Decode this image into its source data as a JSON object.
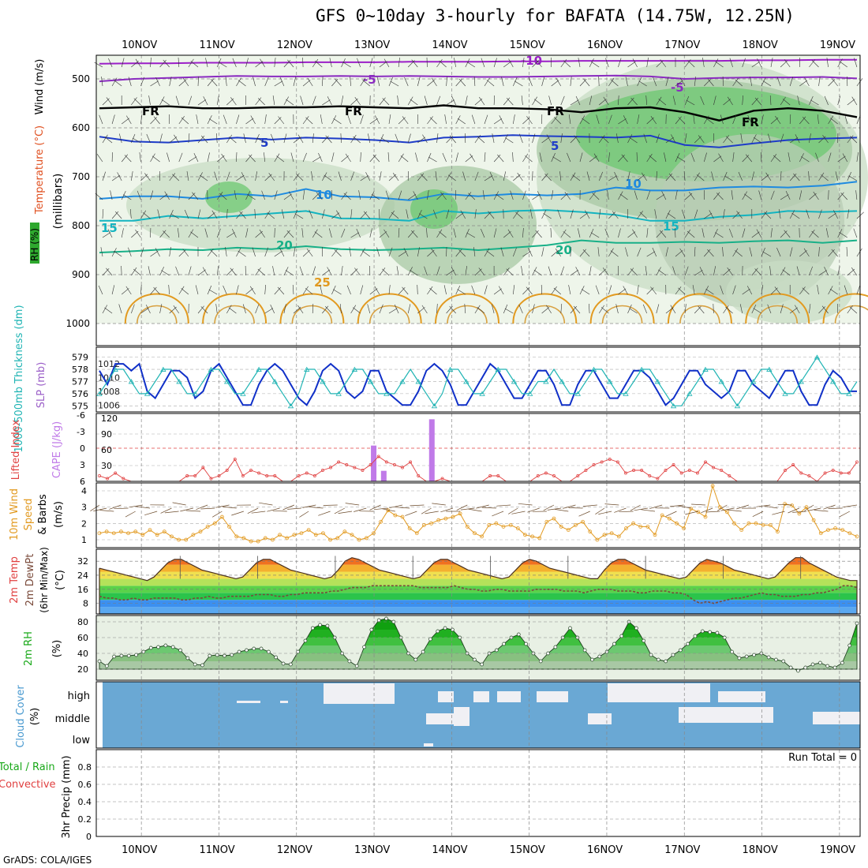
{
  "title": "GFS 0~10day 3-hourly for BAFATA (14.75W, 12.25N)",
  "credit": "GrADS: COLA/IGES",
  "chart_data": [
    {
      "type": "heatmap",
      "panel": "upper-air",
      "x_dates": [
        "10NOV",
        "11NOV",
        "12NOV",
        "13NOV",
        "14NOV",
        "15NOV",
        "16NOV",
        "17NOV",
        "18NOV",
        "19NOV"
      ],
      "ylabel": "(millibars)",
      "y_ticks": [
        500,
        600,
        700,
        800,
        900,
        1000
      ],
      "ylim": [
        1000,
        450
      ],
      "legend_labels": {
        "rh": "RH (%)",
        "temp": "Temperature (°C)",
        "wind": "Wind (m/s)"
      },
      "isotherm_labels": [
        "-10",
        "-5",
        "FR",
        "5",
        "10",
        "15",
        "20",
        "25"
      ],
      "isotherms": [
        {
          "label": "-10",
          "color": "#9b1fc8",
          "p": [
            469,
            468,
            468,
            467,
            467,
            467,
            466,
            466,
            466,
            465,
            465,
            465,
            464,
            464,
            463,
            463,
            463,
            463,
            463,
            462,
            462,
            461,
            461
          ]
        },
        {
          "label": "-5",
          "color": "#8a2bc0",
          "p": [
            505,
            500,
            498,
            496,
            494,
            495,
            495,
            494,
            495,
            494,
            495,
            496,
            496,
            495,
            494,
            493,
            495,
            500,
            498,
            497,
            497,
            496,
            499
          ]
        },
        {
          "label": "FR",
          "color": "#000000",
          "p": [
            560,
            558,
            556,
            560,
            560,
            558,
            558,
            556,
            558,
            560,
            554,
            560,
            560,
            562,
            568,
            560,
            558,
            568,
            585,
            565,
            560,
            565,
            578
          ]
        },
        {
          "label": "5",
          "color": "#1e3cc8",
          "p": [
            618,
            628,
            630,
            625,
            620,
            624,
            620,
            622,
            625,
            630,
            620,
            618,
            615,
            617,
            618,
            620,
            616,
            635,
            640,
            632,
            625,
            622,
            620
          ]
        },
        {
          "label": "10",
          "color": "#1e8ae0",
          "p": [
            745,
            740,
            740,
            745,
            735,
            740,
            725,
            740,
            742,
            748,
            735,
            740,
            735,
            738,
            735,
            722,
            728,
            728,
            722,
            720,
            722,
            718,
            710
          ]
        },
        {
          "label": "15",
          "color": "#14b4c0",
          "p": [
            790,
            790,
            780,
            785,
            780,
            775,
            770,
            785,
            786,
            790,
            770,
            775,
            770,
            768,
            772,
            778,
            790,
            790,
            782,
            778,
            770,
            772,
            770
          ]
        },
        {
          "label": "20",
          "color": "#18b088",
          "p": [
            855,
            852,
            848,
            850,
            845,
            848,
            842,
            848,
            850,
            848,
            845,
            850,
            845,
            840,
            830,
            835,
            835,
            833,
            835,
            832,
            830,
            835,
            830
          ]
        }
      ],
      "rh_band_note": "RH shading 30-90%"
    },
    {
      "type": "line",
      "panel": "thickness-slp",
      "ylabel_left": "1000-500mb Thickness (dm)",
      "ylabel_right": "SLP (mb)",
      "y_ticks_left": [
        575,
        576,
        577,
        578,
        579
      ],
      "y_ticks_right": [
        1006,
        1008,
        1010,
        1012
      ],
      "series": [
        {
          "name": "SLP",
          "color": "#1030c8",
          "values": [
            1011,
            1009,
            1012,
            1012,
            1011,
            1012,
            1008,
            1007,
            1009,
            1011,
            1011,
            1010,
            1007,
            1008,
            1011,
            1012,
            1010,
            1008,
            1006,
            1006,
            1009,
            1011,
            1012,
            1011,
            1009,
            1007,
            1006,
            1008,
            1011,
            1012,
            1011,
            1008,
            1007,
            1008,
            1011,
            1011,
            1008,
            1007,
            1006,
            1006,
            1008,
            1011,
            1012,
            1011,
            1009,
            1006,
            1006,
            1008,
            1010,
            1012,
            1011,
            1009,
            1007,
            1007,
            1009,
            1011,
            1011,
            1009,
            1006,
            1006,
            1009,
            1011,
            1011,
            1009,
            1007,
            1007,
            1009,
            1011,
            1011,
            1010,
            1008,
            1006,
            1007,
            1009,
            1011,
            1011,
            1009,
            1008,
            1007,
            1008,
            1011,
            1011,
            1009,
            1008,
            1007,
            1009,
            1011,
            1011,
            1008,
            1006,
            1006,
            1009,
            1011,
            1010,
            1008,
            1008
          ]
        },
        {
          "name": "Thickness",
          "color": "#20b4b4",
          "values": [
            576,
            577,
            578,
            578,
            577,
            576,
            576,
            577,
            578,
            578,
            577,
            576,
            576,
            577,
            578,
            578,
            577,
            576,
            576,
            577,
            578,
            578,
            577,
            576,
            575,
            576,
            578,
            578,
            577,
            576,
            576,
            577,
            578,
            578,
            577,
            576,
            576,
            576,
            577,
            578,
            577,
            576,
            575,
            576,
            578,
            578,
            577,
            576,
            576,
            577,
            578,
            578,
            577,
            576,
            576,
            577,
            577,
            578,
            577,
            576,
            576,
            577,
            578,
            578,
            577,
            576,
            576,
            577,
            578,
            578,
            577,
            576,
            575,
            575,
            576,
            577,
            578,
            578,
            577,
            576,
            575,
            576,
            577,
            578,
            578,
            577,
            576,
            576,
            577,
            578,
            579,
            578,
            577,
            576,
            576,
            577
          ]
        }
      ]
    },
    {
      "type": "bar",
      "panel": "cape-li",
      "ylabel_left": "Lifted Index",
      "ylabel_right": "CAPE (J/kg)",
      "y_ticks_left": [
        -6,
        -3,
        0,
        3,
        6
      ],
      "y_ticks_right": [
        30,
        60,
        90,
        120
      ],
      "cape_bars": [
        {
          "x": 13.0,
          "value": 68
        },
        {
          "x": 13.13,
          "value": 20
        },
        {
          "x": 13.75,
          "value": 118
        }
      ],
      "lifted_index": [
        5,
        5.5,
        4.5,
        5.5,
        6,
        6,
        6,
        6,
        6,
        6,
        6,
        5,
        5,
        3.5,
        5.5,
        5,
        4,
        2,
        5,
        4,
        4.5,
        5,
        5,
        6,
        6,
        5,
        4.5,
        5,
        4,
        3.5,
        2.5,
        3,
        3.5,
        4,
        3,
        1.5,
        2.5,
        3,
        3.5,
        2.5,
        5,
        6,
        6,
        5.5,
        6,
        6,
        6,
        6,
        6,
        5,
        5,
        6,
        6,
        6,
        6,
        5,
        4.5,
        5,
        6,
        6,
        5,
        4,
        3,
        2.5,
        2,
        2.5,
        4.5,
        4,
        4,
        5,
        5.5,
        4,
        3,
        4.5,
        4,
        4.5,
        2.5,
        3.5,
        4,
        5,
        6,
        6,
        6,
        6,
        6,
        6,
        4,
        3,
        4.5,
        5,
        6,
        4.5,
        4,
        4.5,
        4.5,
        2.5
      ]
    },
    {
      "type": "line",
      "panel": "10m-wind",
      "ylabel": "10m Wind Speed & Barbs (m/s)",
      "y_ticks": [
        1,
        2,
        3,
        4
      ],
      "series": [
        {
          "name": "10m Wind Speed",
          "color": "#e29a20",
          "values": [
            1.4,
            1.5,
            1.4,
            1.5,
            1.4,
            1.5,
            1.3,
            1.6,
            1.3,
            1.5,
            1.2,
            1.0,
            1.0,
            1.3,
            1.5,
            1.8,
            2.0,
            2.4,
            1.8,
            1.2,
            1.1,
            0.9,
            0.9,
            1.1,
            1.0,
            1.3,
            1.1,
            1.3,
            1.4,
            1.6,
            1.3,
            1.4,
            1.0,
            1.1,
            1.5,
            1.3,
            1.0,
            1.1,
            1.4,
            2.1,
            2.8,
            2.5,
            2.4,
            1.7,
            1.4,
            1.9,
            2.0,
            2.2,
            2.3,
            2.4,
            2.6,
            1.8,
            1.4,
            1.2,
            1.9,
            2.0,
            1.8,
            1.9,
            1.7,
            1.3,
            1.2,
            1.1,
            2.1,
            2.3,
            1.8,
            1.6,
            1.9,
            2.1,
            1.5,
            1.0,
            1.3,
            1.4,
            1.2,
            1.7,
            2.0,
            1.8,
            1.8,
            1.3,
            2.5,
            2.3,
            2.0,
            1.7,
            2.9,
            2.7,
            2.4,
            4.3,
            3.0,
            2.7,
            2.0,
            1.6,
            2.0,
            2.0,
            1.9,
            1.9,
            1.5,
            3.2,
            3.1,
            2.6,
            3.0,
            2.2,
            1.4,
            1.6,
            1.7,
            1.6,
            1.4,
            1.2
          ]
        }
      ]
    },
    {
      "type": "area",
      "panel": "2m-temp",
      "ylabel": "2m Temp / 2m DewPt (6hr Min/Max) (°C)",
      "y_ticks": [
        8,
        16,
        24,
        32
      ],
      "series": [
        {
          "name": "2m Temp",
          "values": [
            28,
            27,
            26,
            25,
            24,
            23,
            22,
            21,
            23,
            27,
            31,
            33,
            33,
            31,
            29,
            27,
            26,
            25,
            24,
            23,
            22,
            23,
            27,
            31,
            33,
            33,
            31,
            29,
            27,
            26,
            25,
            24,
            23,
            22,
            23,
            27,
            32,
            34,
            33,
            31,
            29,
            27,
            26,
            25,
            24,
            23,
            22,
            23,
            27,
            31,
            33,
            33,
            31,
            29,
            27,
            26,
            25,
            24,
            23,
            22,
            23,
            27,
            31,
            33,
            32,
            30,
            28,
            27,
            26,
            25,
            24,
            23,
            22,
            22,
            27,
            31,
            33,
            33,
            31,
            29,
            27,
            26,
            25,
            24,
            23,
            22,
            23,
            27,
            31,
            33,
            32,
            31,
            29,
            27,
            26,
            25,
            24,
            23,
            22,
            23,
            27,
            31,
            34,
            34,
            31,
            29,
            27,
            25,
            23,
            22,
            21,
            21
          ]
        },
        {
          "name": "2m DewPt",
          "values": [
            12,
            11,
            11,
            10,
            10,
            11,
            10,
            10,
            11,
            11,
            11,
            11,
            10,
            10,
            11,
            11,
            12,
            11,
            11,
            12,
            12,
            12,
            12,
            13,
            13,
            13,
            12,
            12,
            13,
            13,
            14,
            14,
            14,
            14,
            15,
            15,
            16,
            17,
            17,
            17,
            18,
            18,
            18,
            18,
            18,
            18,
            18,
            17,
            17,
            17,
            17,
            17,
            18,
            17,
            16,
            16,
            15,
            15,
            16,
            16,
            15,
            15,
            15,
            15,
            16,
            16,
            16,
            16,
            15,
            15,
            15,
            14,
            15,
            16,
            16,
            16,
            15,
            15,
            15,
            14,
            14,
            15,
            15,
            15,
            14,
            14,
            13,
            10,
            8,
            9,
            8,
            9,
            10,
            11,
            11,
            12,
            13,
            14,
            13,
            13,
            12,
            12,
            12,
            13,
            13,
            14,
            14,
            15,
            16,
            18,
            18,
            17
          ]
        }
      ]
    },
    {
      "type": "area",
      "panel": "2m-rh",
      "ylabel": "2m RH (%)",
      "y_ticks": [
        20,
        40,
        60,
        80
      ],
      "series": [
        {
          "name": "2m RH",
          "values": [
            30,
            24,
            36,
            37,
            37,
            38,
            42,
            47,
            48,
            50,
            48,
            44,
            34,
            26,
            25,
            37,
            38,
            37,
            38,
            42,
            44,
            46,
            46,
            42,
            35,
            27,
            26,
            42,
            56,
            72,
            76,
            75,
            60,
            40,
            30,
            24,
            48,
            70,
            82,
            84,
            80,
            60,
            40,
            32,
            42,
            58,
            68,
            72,
            70,
            60,
            40,
            32,
            26,
            40,
            44,
            52,
            60,
            64,
            52,
            40,
            30,
            40,
            48,
            60,
            72,
            60,
            44,
            32,
            36,
            42,
            52,
            62,
            80,
            72,
            56,
            38,
            32,
            30,
            38,
            44,
            52,
            62,
            68,
            67,
            66,
            60,
            42,
            34,
            36,
            38,
            40,
            35,
            32,
            30,
            22,
            18,
            22,
            26,
            28,
            24,
            22,
            28,
            50,
            78
          ]
        }
      ]
    },
    {
      "type": "heatmap",
      "panel": "cloud-cover",
      "ylabel": "Cloud Cover (%)",
      "y_labels": [
        "high",
        "middle",
        "low"
      ]
    },
    {
      "type": "bar",
      "panel": "precip",
      "ylabel": "3hr Precip (mm)",
      "legend_labels": {
        "total": "Total / Rain",
        "convective": "Convective"
      },
      "y_ticks": [
        0,
        0.2,
        0.4,
        0.6,
        0.8
      ],
      "ylim": [
        0,
        1
      ],
      "annotation": "Run Total = 0",
      "values": []
    }
  ]
}
